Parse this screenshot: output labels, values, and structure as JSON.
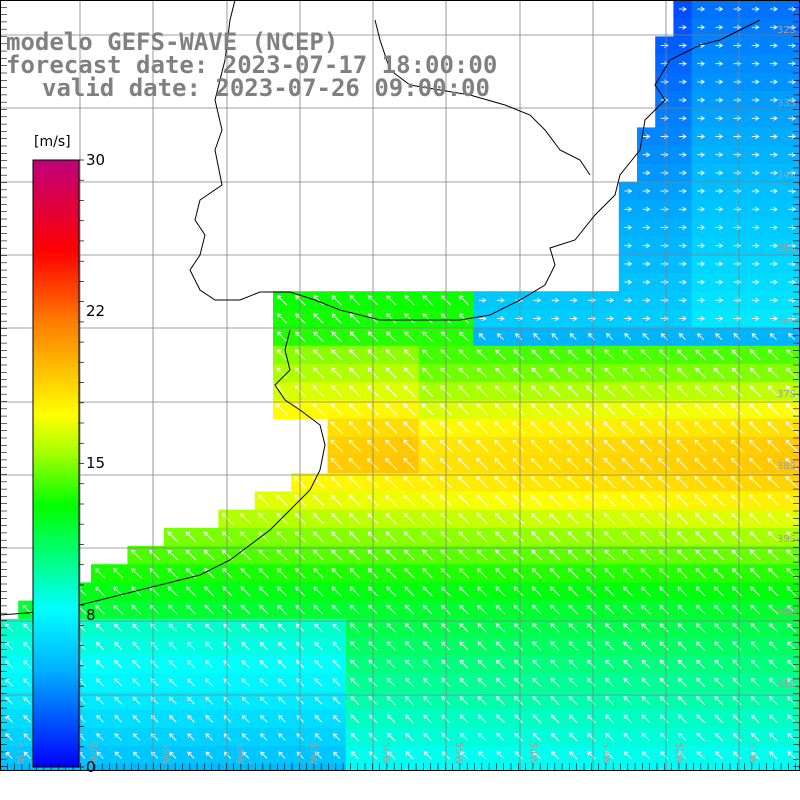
{
  "title": {
    "line1": "modelo GEFS-WAVE (NCEP)",
    "line2": "forecast date: 2023-07-17 18:00:00",
    "line3": "valid date: 2023-07-26 09:00:00"
  },
  "colorbar": {
    "unit": "[m/s]",
    "ticks": [
      "30",
      "22",
      "15",
      "8",
      "0"
    ],
    "tick_values": [
      30,
      22,
      15,
      8,
      0
    ],
    "colors": [
      "#0000ff",
      "#00b4ff",
      "#00ffff",
      "#00ff00",
      "#ffff00",
      "#ff8000",
      "#ff0000",
      "#c8006e"
    ]
  },
  "axes": {
    "lat_labels": [
      "32S",
      "33S",
      "34S",
      "35S",
      "36S",
      "37S",
      "38S",
      "39S",
      "40S",
      "41S"
    ],
    "lon_labels": [
      "61W",
      "60W",
      "59W",
      "58W",
      "57W",
      "56W",
      "55W",
      "54W",
      "53W",
      "52W",
      "51W"
    ]
  },
  "colors": {
    "land": "#ffffff",
    "coast": "#000000",
    "grid": "#808080",
    "arrow": "#ffffff",
    "title": "#808080"
  },
  "chart_data": {
    "type": "heatmap",
    "variable": "wind speed",
    "units": "m/s",
    "scale_range": [
      0,
      30
    ],
    "arrow_direction": "from south-east (vectors pointing north-west); near-shore north-east region pointing east",
    "regions": [
      {
        "area": "north-east coast (off Brazil/Uruguay)",
        "speed_range": [
          3,
          8
        ]
      },
      {
        "area": "Rio de la Plata mouth and central band",
        "speed_range": [
          15,
          19
        ]
      },
      {
        "area": "south-central",
        "speed_range": [
          12,
          15
        ]
      },
      {
        "area": "south-west",
        "speed_range": [
          8,
          11
        ]
      }
    ]
  }
}
